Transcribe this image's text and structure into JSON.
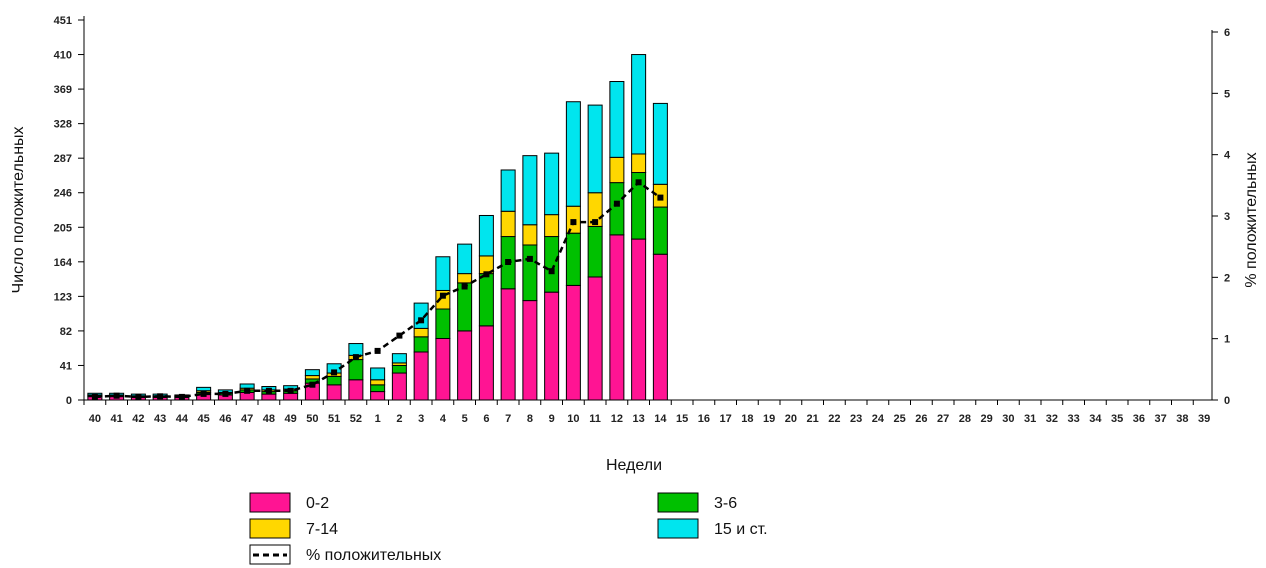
{
  "chart_data": {
    "type": "bar",
    "stacked": true,
    "categories": [
      "40",
      "41",
      "42",
      "43",
      "44",
      "45",
      "46",
      "47",
      "48",
      "49",
      "50",
      "51",
      "52",
      "1",
      "2",
      "3",
      "4",
      "5",
      "6",
      "7",
      "8",
      "9",
      "10",
      "11",
      "12",
      "13",
      "14",
      "15",
      "16",
      "17",
      "18",
      "19",
      "20",
      "21",
      "22",
      "23",
      "24",
      "25",
      "26",
      "27",
      "28",
      "29",
      "30",
      "31",
      "32",
      "33",
      "34",
      "35",
      "36",
      "37",
      "38",
      "39"
    ],
    "series": [
      {
        "name": "0-2",
        "color": "#ff1493",
        "values": [
          4,
          4,
          3,
          3,
          3,
          7,
          6,
          9,
          7,
          8,
          20,
          18,
          24,
          10,
          32,
          57,
          73,
          82,
          88,
          132,
          118,
          128,
          136,
          146,
          196,
          191,
          173,
          null,
          null,
          null,
          null,
          null,
          null,
          null,
          null,
          null,
          null,
          null,
          null,
          null,
          null,
          null,
          null,
          null,
          null,
          null,
          null,
          null,
          null,
          null,
          null,
          null
        ]
      },
      {
        "name": "3-6",
        "color": "#00c000",
        "values": [
          1,
          1,
          1,
          1,
          1,
          2,
          2,
          3,
          3,
          3,
          5,
          10,
          24,
          8,
          9,
          18,
          35,
          57,
          62,
          62,
          66,
          66,
          62,
          60,
          62,
          79,
          56,
          null,
          null,
          null,
          null,
          null,
          null,
          null,
          null,
          null,
          null,
          null,
          null,
          null,
          null,
          null,
          null,
          null,
          null,
          null,
          null,
          null,
          null,
          null,
          null,
          null
        ]
      },
      {
        "name": "7-14",
        "color": "#ffd700",
        "values": [
          1,
          1,
          1,
          1,
          1,
          2,
          1,
          2,
          2,
          2,
          4,
          4,
          5,
          6,
          3,
          10,
          22,
          11,
          21,
          30,
          24,
          26,
          32,
          40,
          30,
          22,
          27,
          null,
          null,
          null,
          null,
          null,
          null,
          null,
          null,
          null,
          null,
          null,
          null,
          null,
          null,
          null,
          null,
          null,
          null,
          null,
          null,
          null,
          null,
          null,
          null,
          null
        ]
      },
      {
        "name": "15 и ст.",
        "color": "#00e5ee",
        "values": [
          2,
          2,
          2,
          2,
          1,
          4,
          3,
          5,
          4,
          4,
          7,
          11,
          14,
          14,
          11,
          30,
          40,
          35,
          48,
          49,
          82,
          73,
          124,
          104,
          90,
          118,
          96,
          null,
          null,
          null,
          null,
          null,
          null,
          null,
          null,
          null,
          null,
          null,
          null,
          null,
          null,
          null,
          null,
          null,
          null,
          null,
          null,
          null,
          null,
          null,
          null,
          null
        ]
      }
    ],
    "line_series": {
      "name": "% положительных",
      "color": "#000000",
      "dash": "dashed",
      "axis": "right",
      "values": [
        0.05,
        0.07,
        0.05,
        0.06,
        0.05,
        0.1,
        0.1,
        0.15,
        0.15,
        0.15,
        0.25,
        0.45,
        0.7,
        0.8,
        1.05,
        1.3,
        1.7,
        1.85,
        2.05,
        2.25,
        2.3,
        2.1,
        2.9,
        2.9,
        3.2,
        3.55,
        3.3,
        null,
        null,
        null,
        null,
        null,
        null,
        null,
        null,
        null,
        null,
        null,
        null,
        null,
        null,
        null,
        null,
        null,
        null,
        null,
        null,
        null,
        null,
        null,
        null,
        null
      ]
    },
    "xlabel": "Недели",
    "ylabel": "Число положительных",
    "y2label": "% положительных",
    "ylim": [
      0,
      451
    ],
    "y2lim": [
      0,
      6
    ],
    "yticks": [
      "0",
      "41",
      "82",
      "123",
      "164",
      "205",
      "246",
      "287",
      "328",
      "369",
      "410",
      "451"
    ],
    "y2ticks": [
      "0",
      "1",
      "2",
      "3",
      "4",
      "5",
      "6"
    ],
    "legend_position": "bottom",
    "grid": false
  },
  "legend": [
    {
      "label": "0-2",
      "color": "#ff1493",
      "kind": "box"
    },
    {
      "label": "3-6",
      "color": "#00c000",
      "kind": "box"
    },
    {
      "label": "7-14",
      "color": "#ffd700",
      "kind": "box"
    },
    {
      "label": "15 и ст.",
      "color": "#00e5ee",
      "kind": "box"
    },
    {
      "label": "% положительных",
      "color": "#000000",
      "kind": "dash"
    }
  ]
}
